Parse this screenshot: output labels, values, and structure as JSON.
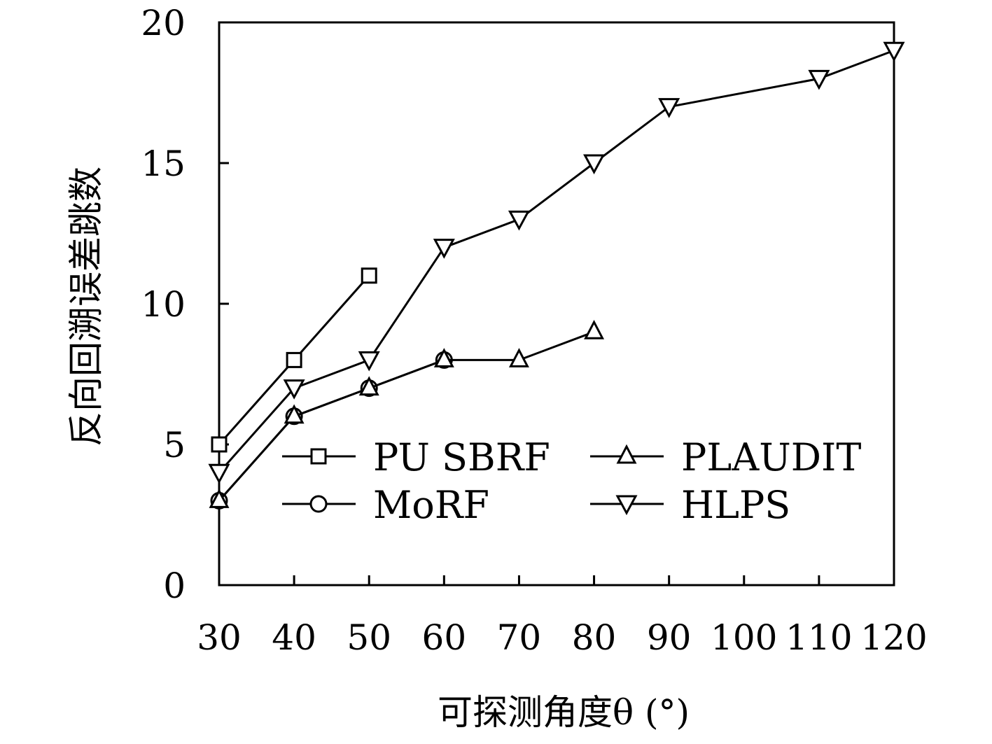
{
  "chart_data": {
    "type": "line",
    "title": "",
    "xlabel": "可探测角度θ (°)",
    "ylabel": "反向回溯误差跳数",
    "x_ticks": [
      30,
      40,
      50,
      60,
      70,
      80,
      90,
      100,
      110,
      120
    ],
    "y_ticks": [
      0,
      5,
      10,
      15,
      20
    ],
    "xlim": [
      30,
      120
    ],
    "ylim": [
      0,
      20
    ],
    "grid": false,
    "legend_position": "lower-right",
    "series": [
      {
        "name": "PU SBRF",
        "marker": "square",
        "x": [
          30,
          40,
          50
        ],
        "y": [
          5,
          8,
          11
        ]
      },
      {
        "name": "MoRF",
        "marker": "circle",
        "x": [
          30,
          40,
          50,
          60
        ],
        "y": [
          3,
          6,
          7,
          8
        ]
      },
      {
        "name": "PLAUDIT",
        "marker": "triangle-up",
        "x": [
          30,
          40,
          50,
          60,
          70,
          80
        ],
        "y": [
          3,
          6,
          7,
          8,
          8,
          9
        ]
      },
      {
        "name": "HLPS",
        "marker": "triangle-down",
        "x": [
          30,
          40,
          50,
          60,
          70,
          80,
          90,
          110,
          120
        ],
        "y": [
          4,
          7,
          8,
          12,
          13,
          15,
          17,
          18,
          19
        ]
      }
    ]
  }
}
